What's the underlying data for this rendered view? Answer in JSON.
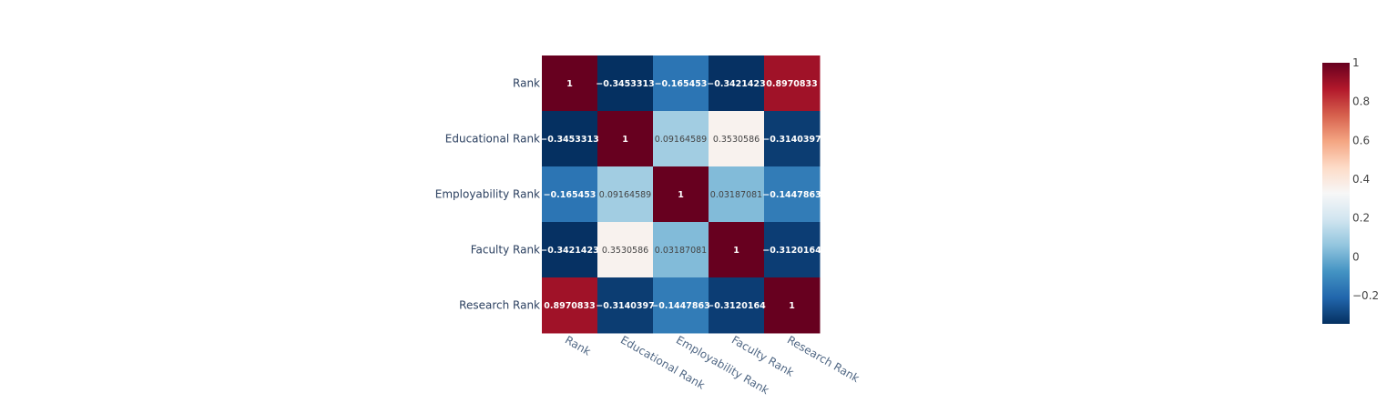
{
  "chart_data": {
    "type": "heatmap",
    "title": "",
    "xlabel": "",
    "ylabel": "",
    "x_categories": [
      "Rank",
      "Educational Rank",
      "Employability Rank",
      "Faculty Rank",
      "Research Rank"
    ],
    "y_categories": [
      "Rank",
      "Educational Rank",
      "Employability Rank",
      "Faculty Rank",
      "Research Rank"
    ],
    "z": [
      [
        1,
        -0.3453313,
        -0.165453,
        -0.3421423,
        0.8970833
      ],
      [
        -0.3453313,
        1,
        0.09164589,
        0.3530586,
        -0.3140397
      ],
      [
        -0.165453,
        0.09164589,
        1,
        0.03187081,
        -0.1447863
      ],
      [
        -0.3421423,
        0.3530586,
        0.03187081,
        1,
        -0.3120164
      ],
      [
        0.8970833,
        -0.3140397,
        -0.1447863,
        -0.3120164,
        1
      ]
    ],
    "cell_labels": [
      [
        "1",
        "−0.3453313",
        "−0.165453",
        "−0.3421423",
        "0.8970833"
      ],
      [
        "−0.3453313",
        "1",
        "0.09164589",
        "0.3530586",
        "−0.3140397"
      ],
      [
        "−0.165453",
        "0.09164589",
        "1",
        "0.03187081",
        "−0.1447863"
      ],
      [
        "−0.3421423",
        "0.3530586",
        "0.03187081",
        "1",
        "−0.3120164"
      ],
      [
        "0.8970833",
        "−0.3140397",
        "−0.1447863",
        "−0.3120164",
        "1"
      ]
    ],
    "colorscale": "RdBu",
    "zmin": -0.3453313,
    "zmax": 1,
    "colorbar": {
      "ticks": [
        -0.2,
        0,
        0.2,
        0.4,
        0.6,
        0.8,
        1
      ],
      "tick_labels": [
        "−0.2",
        "0",
        "0.2",
        "0.4",
        "0.6",
        "0.8",
        "1"
      ]
    }
  }
}
